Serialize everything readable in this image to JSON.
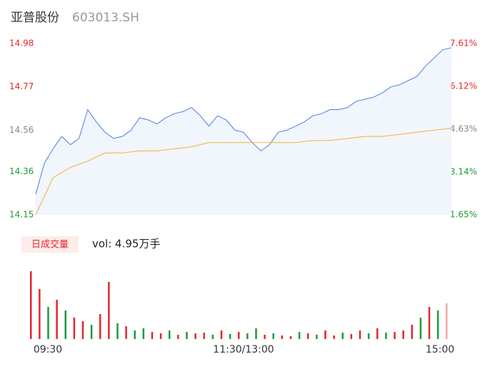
{
  "header": {
    "name": "亚普股份",
    "code": "603013.SH"
  },
  "chart_data": [
    {
      "type": "line",
      "xlim": [
        0,
        240
      ],
      "xticks": [
        {
          "value": 0,
          "label": "09:30"
        },
        {
          "value": 120,
          "label": "11:30/13:00"
        },
        {
          "value": 240,
          "label": "15:00"
        }
      ],
      "ylim": [
        14.15,
        14.98
      ],
      "yticks": [
        14.15,
        14.36,
        14.56,
        14.77,
        14.98
      ],
      "ytick_colors": [
        "#1a9c3a",
        "#1a9c3a",
        "#888888",
        "#e5262c",
        "#e5262c"
      ],
      "y2lim": [
        1.65,
        7.61
      ],
      "y2ticks": [
        {
          "value": 1.65,
          "label": "1.65%"
        },
        {
          "value": 3.14,
          "label": "3.14%"
        },
        {
          "value": 4.63,
          "label": "4.63%"
        },
        {
          "value": 6.12,
          "label": "6.12%"
        },
        {
          "value": 7.61,
          "label": "7.61%"
        }
      ],
      "series": [
        {
          "name": "price",
          "color": "#4a7ee0",
          "x": [
            0,
            5,
            10,
            15,
            20,
            25,
            30,
            35,
            40,
            45,
            50,
            55,
            60,
            65,
            70,
            75,
            80,
            85,
            90,
            95,
            100,
            105,
            110,
            115,
            120,
            125,
            130,
            135,
            140,
            145,
            150,
            155,
            160,
            165,
            170,
            175,
            180,
            185,
            190,
            195,
            200,
            205,
            210,
            215,
            220,
            225,
            230,
            235,
            240
          ],
          "values": [
            14.25,
            14.4,
            14.47,
            14.53,
            14.49,
            14.52,
            14.66,
            14.6,
            14.55,
            14.52,
            14.53,
            14.56,
            14.62,
            14.61,
            14.59,
            14.62,
            14.64,
            14.65,
            14.67,
            14.63,
            14.58,
            14.63,
            14.61,
            14.56,
            14.55,
            14.5,
            14.46,
            14.49,
            14.55,
            14.56,
            14.58,
            14.6,
            14.63,
            14.64,
            14.66,
            14.66,
            14.67,
            14.7,
            14.71,
            14.72,
            14.74,
            14.77,
            14.78,
            14.8,
            14.82,
            14.87,
            14.91,
            14.95,
            14.96
          ]
        },
        {
          "name": "average",
          "color": "#f0b43c",
          "x": [
            0,
            10,
            20,
            30,
            40,
            50,
            60,
            70,
            80,
            90,
            100,
            110,
            120,
            130,
            140,
            150,
            160,
            170,
            180,
            190,
            200,
            210,
            220,
            230,
            240
          ],
          "values": [
            14.15,
            14.33,
            14.38,
            14.41,
            14.45,
            14.45,
            14.46,
            14.46,
            14.47,
            14.48,
            14.5,
            14.5,
            14.5,
            14.5,
            14.5,
            14.5,
            14.51,
            14.51,
            14.52,
            14.53,
            14.53,
            14.54,
            14.55,
            14.56,
            14.57
          ]
        }
      ]
    },
    {
      "type": "volume",
      "badge": "日成交量",
      "summary": "vol: 4.95万手",
      "xlim": [
        0,
        240
      ],
      "ylim": [
        0,
        100
      ],
      "x": [
        0,
        5,
        10,
        15,
        20,
        25,
        30,
        35,
        40,
        45,
        50,
        55,
        60,
        65,
        70,
        75,
        80,
        85,
        90,
        95,
        100,
        105,
        110,
        115,
        120,
        125,
        130,
        135,
        140,
        145,
        150,
        155,
        160,
        165,
        170,
        175,
        180,
        185,
        190,
        195,
        200,
        205,
        210,
        215,
        220,
        225,
        230,
        235,
        240
      ],
      "values": [
        95,
        70,
        45,
        55,
        40,
        30,
        25,
        20,
        35,
        80,
        22,
        18,
        12,
        15,
        10,
        8,
        12,
        6,
        10,
        8,
        9,
        6,
        12,
        7,
        10,
        8,
        15,
        6,
        8,
        5,
        4,
        10,
        8,
        6,
        12,
        5,
        9,
        7,
        12,
        8,
        15,
        9,
        10,
        12,
        20,
        30,
        45,
        40,
        50
      ],
      "colors": [
        "#e5262c",
        "#e5262c",
        "#1a9c3a",
        "#e5262c",
        "#1a9c3a",
        "#e5262c",
        "#e5262c",
        "#1a9c3a",
        "#e5262c",
        "#e5262c",
        "#1a9c3a",
        "#e5262c",
        "#1a9c3a",
        "#1a9c3a",
        "#e5262c",
        "#e5262c",
        "#1a9c3a",
        "#e5262c",
        "#1a9c3a",
        "#e5262c",
        "#e5262c",
        "#1a9c3a",
        "#e5262c",
        "#1a9c3a",
        "#e5262c",
        "#1a9c3a",
        "#1a9c3a",
        "#e5262c",
        "#1a9c3a",
        "#e5262c",
        "#e5262c",
        "#1a9c3a",
        "#e5262c",
        "#1a9c3a",
        "#e5262c",
        "#e5262c",
        "#1a9c3a",
        "#e5262c",
        "#e5262c",
        "#1a9c3a",
        "#e5262c",
        "#1a9c3a",
        "#e5262c",
        "#e5262c",
        "#e5262c",
        "#1a9c3a",
        "#e5262c",
        "#1a9c3a",
        "#f4a8a8"
      ]
    }
  ]
}
